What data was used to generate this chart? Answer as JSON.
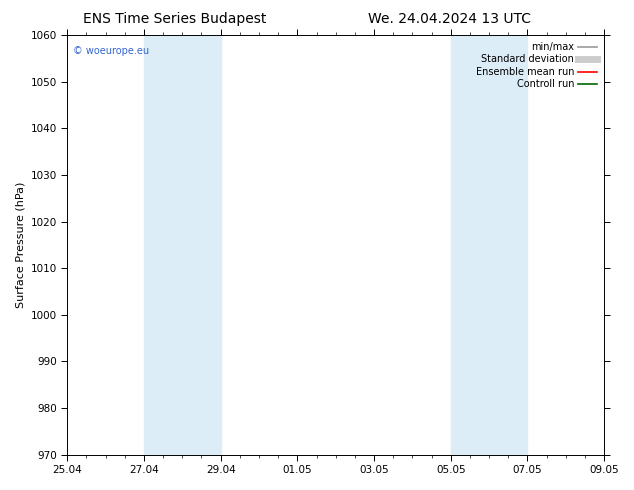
{
  "title_left": "ENS Time Series Budapest",
  "title_right": "We. 24.04.2024 13 UTC",
  "ylabel": "Surface Pressure (hPa)",
  "ylim": [
    970,
    1060
  ],
  "yticks": [
    970,
    980,
    990,
    1000,
    1010,
    1020,
    1030,
    1040,
    1050,
    1060
  ],
  "xtick_labels": [
    "25.04",
    "27.04",
    "29.04",
    "01.05",
    "03.05",
    "05.05",
    "07.05",
    "09.05"
  ],
  "xtick_positions": [
    0,
    2,
    4,
    6,
    8,
    10,
    12,
    14
  ],
  "shade_regions": [
    {
      "x_start": 2,
      "x_end": 4
    },
    {
      "x_start": 10,
      "x_end": 12
    }
  ],
  "shade_color": "#ddedf8",
  "background_color": "#ffffff",
  "watermark_text": "© woeurope.eu",
  "watermark_color": "#3366cc",
  "legend_entries": [
    {
      "label": "min/max",
      "color": "#999999",
      "lw": 1.2
    },
    {
      "label": "Standard deviation",
      "color": "#cccccc",
      "lw": 5
    },
    {
      "label": "Ensemble mean run",
      "color": "#ff0000",
      "lw": 1.2
    },
    {
      "label": "Controll run",
      "color": "#006600",
      "lw": 1.2
    }
  ],
  "x_total": 14,
  "font_size_title": 10,
  "font_size_axis": 8,
  "font_size_legend": 7,
  "font_size_ticks": 7.5
}
